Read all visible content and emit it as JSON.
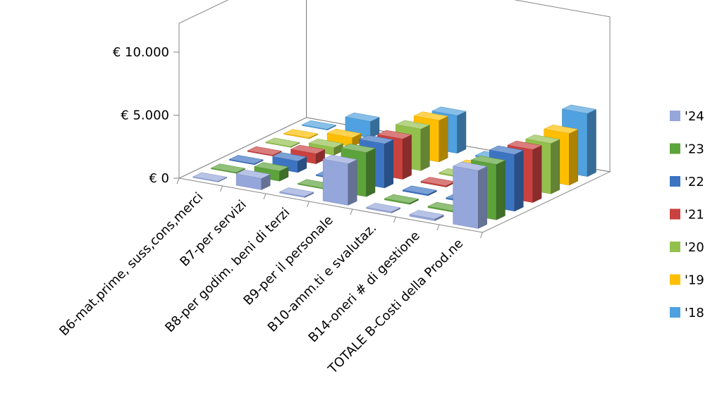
{
  "chart_data": {
    "type": "bar",
    "title": "",
    "xlabel": "",
    "ylabel": "",
    "ylim": [
      0,
      10000
    ],
    "y_ticks": [
      "€ 0",
      "€ 5.000",
      "€ 10.000"
    ],
    "y_tick_values": [
      0,
      5000,
      10000
    ],
    "categories": [
      "B6-mat.prime, suss,cons,merci",
      "B7-per servizi",
      "B8-per godim. beni di terzi",
      "B9-per il personale",
      "B10-amm.ti e svalutaz.",
      "B14-oneri # di gestione",
      "TOTALE  B-Costi della Prod.ne"
    ],
    "series": [
      {
        "name": "'24",
        "color": "#95A6DB",
        "values": [
          0,
          900,
          100,
          3300,
          100,
          150,
          4600
        ]
      },
      {
        "name": "'23",
        "color": "#5DA33C",
        "values": [
          0,
          800,
          50,
          3500,
          100,
          100,
          4400
        ]
      },
      {
        "name": "'22",
        "color": "#3D74C2",
        "values": [
          0,
          900,
          50,
          3500,
          100,
          100,
          4500
        ]
      },
      {
        "name": "'21",
        "color": "#C94240",
        "values": [
          0,
          800,
          50,
          3200,
          100,
          100,
          4200
        ]
      },
      {
        "name": "'20",
        "color": "#93C04C",
        "values": [
          0,
          600,
          50,
          3300,
          100,
          100,
          4000
        ]
      },
      {
        "name": "'19",
        "color": "#FFBF00",
        "values": [
          0,
          700,
          50,
          3300,
          100,
          100,
          4100
        ]
      },
      {
        "name": "'18",
        "color": "#4FA1DF",
        "values": [
          0,
          1300,
          50,
          3000,
          100,
          100,
          5000
        ]
      }
    ],
    "legend_position": "right",
    "grid": false
  }
}
